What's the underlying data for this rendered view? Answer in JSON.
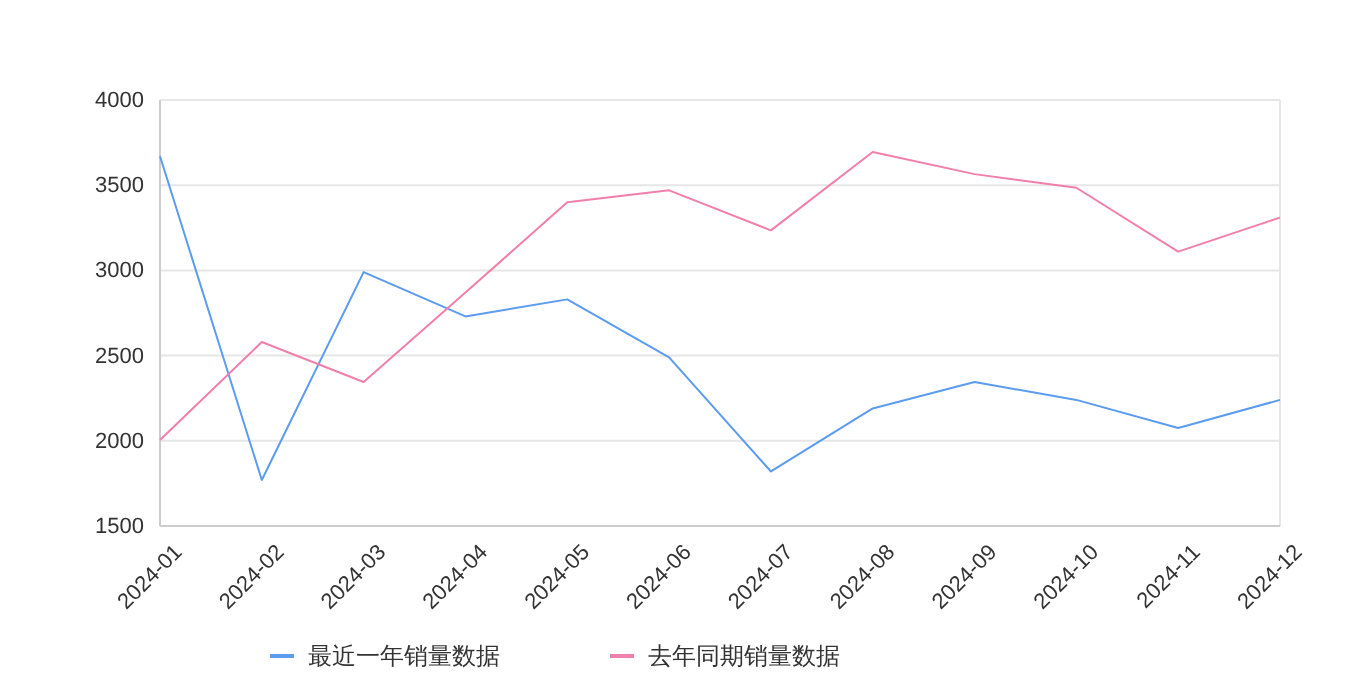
{
  "chart_data": {
    "type": "line",
    "categories": [
      "2024-01",
      "2024-02",
      "2024-03",
      "2024-04",
      "2024-05",
      "2024-06",
      "2024-07",
      "2024-08",
      "2024-09",
      "2024-10",
      "2024-11",
      "2024-12"
    ],
    "series": [
      {
        "name": "最近一年销量数据",
        "color": "#5b9bf0",
        "values": [
          3670,
          1770,
          2990,
          2730,
          2830,
          2490,
          1820,
          2190,
          2345,
          2240,
          2075,
          2240
        ]
      },
      {
        "name": "去年同期销量数据",
        "color": "#f07fab",
        "values": [
          2005,
          2580,
          2345,
          2870,
          3400,
          3470,
          3235,
          3695,
          3565,
          3485,
          3110,
          3310
        ]
      }
    ],
    "ylim": [
      1500,
      4000
    ],
    "yticks": [
      1500,
      2000,
      2500,
      3000,
      3500,
      4000
    ],
    "grid": "y",
    "legend": "bottom",
    "marker": "none",
    "line_style": "solid"
  }
}
